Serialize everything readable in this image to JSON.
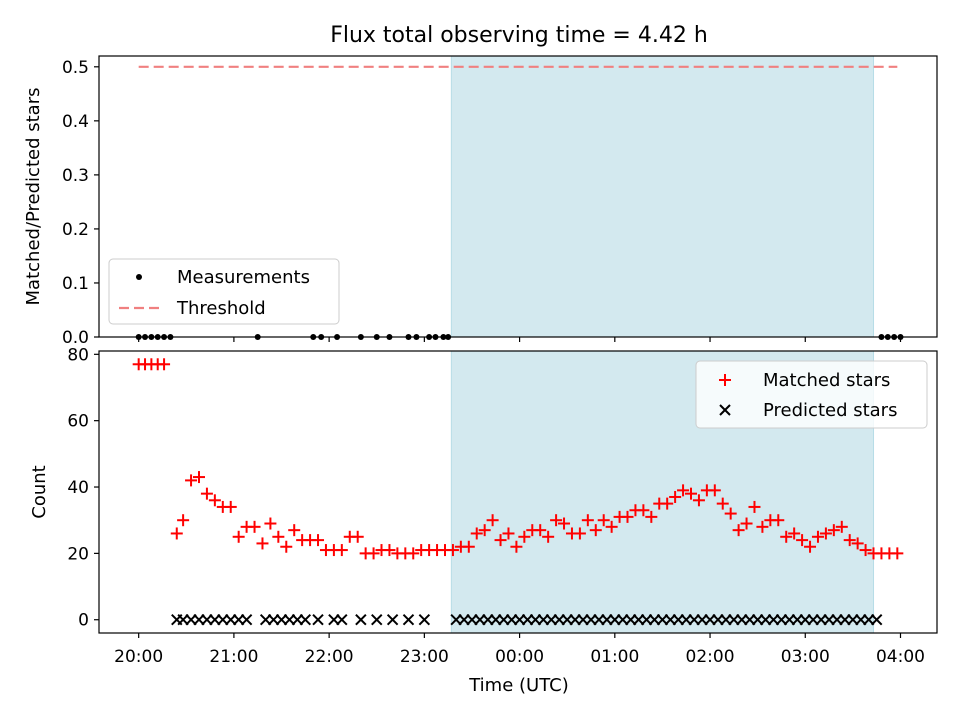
{
  "title": "Flux total observing time = 4.42 h",
  "colors": {
    "shade": "#d3e9ef",
    "shade_edge": "#b7dde7",
    "threshold": "#f08080",
    "matched": "#ff0000",
    "predicted": "#000000",
    "measurement": "#000000"
  },
  "chart_data": [
    {
      "type": "scatter",
      "panel": "top",
      "ylabel": "Matched/Predicted stars",
      "xlabel": "",
      "ylim": [
        0,
        0.52
      ],
      "yticks": [
        "0.0",
        "0.1",
        "0.2",
        "0.3",
        "0.4",
        "0.5"
      ],
      "legend_position": "lower-left",
      "shaded_interval": [
        "23:17",
        "03:43"
      ],
      "series": [
        {
          "name": "Measurements",
          "marker": "dot",
          "x": [
            "20:00",
            "20:04",
            "20:08",
            "20:12",
            "20:16",
            "20:20",
            "21:15",
            "21:50",
            "21:55",
            "22:05",
            "22:20",
            "22:30",
            "22:38",
            "22:50",
            "22:55",
            "23:03",
            "23:07",
            "23:12",
            "23:15",
            "03:48",
            "03:52",
            "03:56",
            "04:00"
          ],
          "y": [
            0,
            0,
            0,
            0,
            0,
            0,
            0,
            0,
            0,
            0,
            0,
            0,
            0,
            0,
            0,
            0,
            0,
            0,
            0,
            0,
            0,
            0,
            0
          ]
        },
        {
          "name": "Threshold",
          "style": "dashed-line",
          "x": [
            "20:00",
            "03:58"
          ],
          "y": [
            0.5,
            0.5
          ]
        }
      ]
    },
    {
      "type": "scatter",
      "panel": "bottom",
      "ylabel": "Count",
      "xlabel": "Time (UTC)",
      "ylim": [
        -4,
        81
      ],
      "yticks": [
        "0",
        "20",
        "40",
        "60",
        "80"
      ],
      "xticks": [
        "20:00",
        "21:00",
        "22:00",
        "23:00",
        "00:00",
        "01:00",
        "02:00",
        "03:00",
        "04:00"
      ],
      "legend_position": "upper-right",
      "shaded_interval": [
        "23:17",
        "03:43"
      ],
      "series": [
        {
          "name": "Matched stars",
          "marker": "plus",
          "x": [
            "20:00",
            "20:04",
            "20:08",
            "20:12",
            "20:16",
            "20:24",
            "20:28",
            "20:33",
            "20:38",
            "20:43",
            "20:48",
            "20:53",
            "20:58",
            "21:03",
            "21:08",
            "21:13",
            "21:18",
            "21:23",
            "21:28",
            "21:33",
            "21:38",
            "21:43",
            "21:48",
            "21:53",
            "21:58",
            "22:03",
            "22:08",
            "22:13",
            "22:18",
            "22:23",
            "22:28",
            "22:33",
            "22:38",
            "22:43",
            "22:48",
            "22:53",
            "22:58",
            "23:03",
            "23:08",
            "23:13",
            "23:18",
            "23:23",
            "23:28",
            "23:33",
            "23:38",
            "23:43",
            "23:48",
            "23:53",
            "23:58",
            "00:03",
            "00:08",
            "00:13",
            "00:18",
            "00:23",
            "00:28",
            "00:33",
            "00:38",
            "00:43",
            "00:48",
            "00:53",
            "00:58",
            "01:03",
            "01:08",
            "01:13",
            "01:18",
            "01:23",
            "01:28",
            "01:33",
            "01:38",
            "01:43",
            "01:48",
            "01:53",
            "01:58",
            "02:03",
            "02:08",
            "02:13",
            "02:18",
            "02:23",
            "02:28",
            "02:33",
            "02:38",
            "02:43",
            "02:48",
            "02:53",
            "02:58",
            "03:03",
            "03:08",
            "03:13",
            "03:18",
            "03:23",
            "03:28",
            "03:33",
            "03:38",
            "03:43",
            "03:48",
            "03:53",
            "03:58"
          ],
          "y": [
            77,
            77,
            77,
            77,
            77,
            26,
            30,
            42,
            43,
            38,
            36,
            34,
            34,
            25,
            28,
            28,
            23,
            29,
            25,
            22,
            27,
            24,
            24,
            24,
            21,
            21,
            21,
            25,
            25,
            20,
            20,
            21,
            21,
            20,
            20,
            20,
            21,
            21,
            21,
            21,
            21,
            22,
            22,
            26,
            27,
            30,
            24,
            26,
            22,
            25,
            27,
            27,
            25,
            30,
            29,
            26,
            26,
            30,
            27,
            30,
            28,
            31,
            31,
            33,
            33,
            31,
            35,
            35,
            37,
            39,
            38,
            36,
            39,
            39,
            35,
            32,
            27,
            29,
            34,
            28,
            30,
            30,
            25,
            26,
            24,
            22,
            25,
            26,
            27,
            28,
            24,
            23,
            21,
            20,
            20,
            20,
            20
          ],
          "note": ""
        },
        {
          "name": "Predicted stars",
          "marker": "x",
          "x": [
            "20:24",
            "20:28",
            "20:33",
            "20:38",
            "20:43",
            "20:48",
            "20:53",
            "20:58",
            "21:03",
            "21:08",
            "21:20",
            "21:25",
            "21:30",
            "21:35",
            "21:40",
            "21:45",
            "21:53",
            "22:03",
            "22:08",
            "22:20",
            "22:30",
            "22:40",
            "22:50",
            "23:00",
            "23:20",
            "23:25",
            "23:30",
            "23:35",
            "23:40",
            "23:45",
            "23:50",
            "23:55",
            "00:00",
            "00:05",
            "00:10",
            "00:15",
            "00:20",
            "00:25",
            "00:30",
            "00:35",
            "00:40",
            "00:45",
            "00:50",
            "00:55",
            "01:00",
            "01:05",
            "01:10",
            "01:15",
            "01:20",
            "01:25",
            "01:30",
            "01:35",
            "01:40",
            "01:45",
            "01:50",
            "01:55",
            "02:00",
            "02:05",
            "02:10",
            "02:15",
            "02:20",
            "02:25",
            "02:30",
            "02:35",
            "02:40",
            "02:45",
            "02:50",
            "02:55",
            "03:00",
            "03:05",
            "03:10",
            "03:15",
            "03:20",
            "03:25",
            "03:30",
            "03:35",
            "03:40",
            "03:45"
          ],
          "y": [
            0,
            0,
            0,
            0,
            0,
            0,
            0,
            0,
            0,
            0,
            0,
            0,
            0,
            0,
            0,
            0,
            0,
            0,
            0,
            0,
            0,
            0,
            0,
            0,
            0,
            0,
            0,
            0,
            0,
            0,
            0,
            0,
            0,
            0,
            0,
            0,
            0,
            0,
            0,
            0,
            0,
            0,
            0,
            0,
            0,
            0,
            0,
            0,
            0,
            0,
            0,
            0,
            0,
            0,
            0,
            0,
            0,
            0,
            0,
            0,
            0,
            0,
            0,
            0,
            0,
            0,
            0,
            0,
            0,
            0,
            0,
            0,
            0,
            0,
            0,
            0,
            0,
            0
          ]
        }
      ]
    }
  ]
}
